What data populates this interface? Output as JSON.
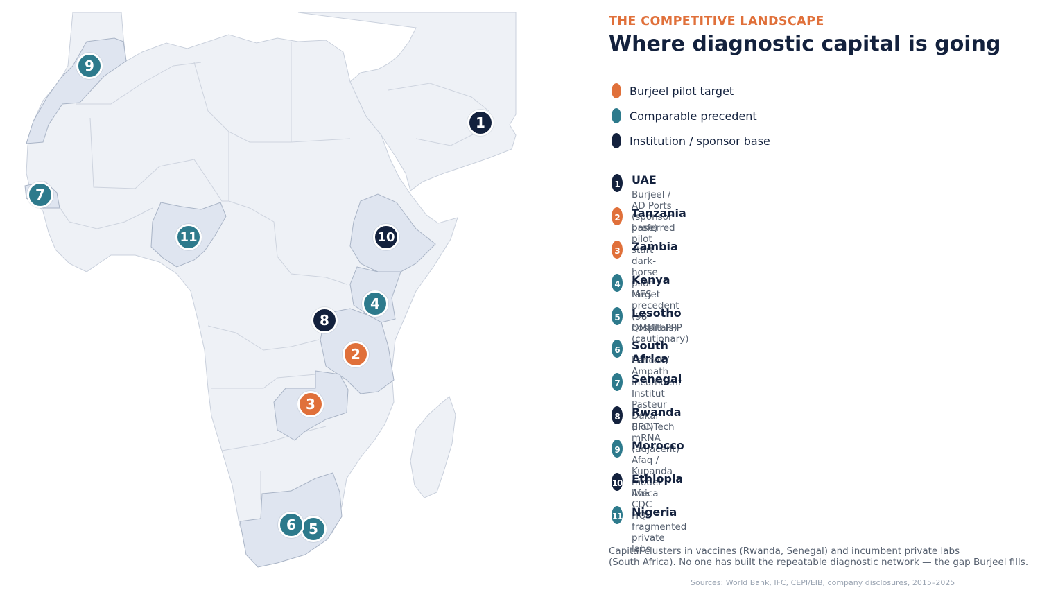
{
  "colors": {
    "accent": "#e0703a",
    "teal": "#2d7a8c",
    "navy": "#13213d",
    "land": "#eef1f6",
    "land_highlight": "#dfe5f0",
    "border": "#c3cad6",
    "muted_text": "#555f6e",
    "source_text": "#9aa4b2"
  },
  "header": {
    "eyebrow": "THE COMPETITIVE LANDSCAPE",
    "title": "Where diagnostic capital is going"
  },
  "legend": [
    {
      "label": "Burjeel pilot target",
      "category": "pilot",
      "color": "#e0703a"
    },
    {
      "label": "Comparable precedent",
      "category": "precedent",
      "color": "#2d7a8c"
    },
    {
      "label": "Institution / sponsor base",
      "category": "institution",
      "color": "#13213d"
    }
  ],
  "locations": [
    {
      "num": "1",
      "name": "UAE",
      "desc": "Burjeel / AD Ports (sponsor base)",
      "category": "institution"
    },
    {
      "num": "2",
      "name": "Tanzania",
      "desc": "preferred pilot start",
      "category": "pilot"
    },
    {
      "num": "3",
      "name": "Zambia",
      "desc": "dark-horse pilot target",
      "category": "pilot"
    },
    {
      "num": "4",
      "name": "Kenya",
      "desc": "MES precedent (98 hospitals)",
      "category": "precedent"
    },
    {
      "num": "5",
      "name": "Lesotho",
      "desc": "QMMH PPP (cautionary)",
      "category": "precedent"
    },
    {
      "num": "6",
      "name": "South Africa",
      "desc": "Lancet / Ampath incumbent",
      "category": "precedent"
    },
    {
      "num": "7",
      "name": "Senegal",
      "desc": "Institut Pasteur Dakar (IFC)",
      "category": "precedent"
    },
    {
      "num": "8",
      "name": "Rwanda",
      "desc": "BioNTech mRNA (adjacent)",
      "category": "institution"
    },
    {
      "num": "9",
      "name": "Morocco",
      "desc": "Afaq / Kupanda model live",
      "category": "precedent"
    },
    {
      "num": "10",
      "name": "Ethiopia",
      "desc": "Africa CDC HQ",
      "category": "institution"
    },
    {
      "num": "11",
      "name": "Nigeria",
      "desc": "fragmented private labs",
      "category": "precedent"
    }
  ],
  "summary": {
    "line1": "Capital clusters in vaccines (Rwanda, Senegal) and incumbent private labs",
    "line2": "(South Africa). No one has built the repeatable diagnostic network — the gap Burjeel fills."
  },
  "sources": "Sources: World Bank, IFC, CEPI/EIB, company disclosures, 2015–2025"
}
